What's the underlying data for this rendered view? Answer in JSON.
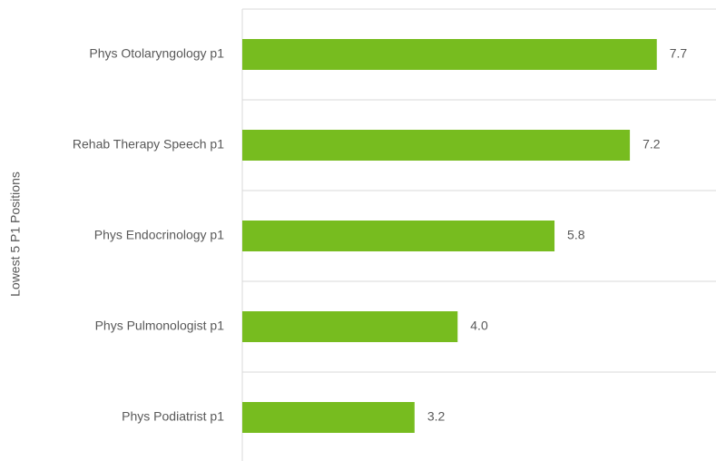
{
  "chart_data": {
    "type": "bar",
    "orientation": "horizontal",
    "y_axis_label": "Lowest 5 P1 Positions",
    "categories": [
      "Phys Otolaryngology p1",
      "Rehab Therapy Speech p1",
      "Phys Endocrinology p1",
      "Phys Pulmonologist p1",
      "Phys Podiatrist p1"
    ],
    "values": [
      7.7,
      7.2,
      5.8,
      4.0,
      3.2
    ],
    "value_labels": [
      "7.7",
      "7.2",
      "5.8",
      "4.0",
      "3.2"
    ],
    "color": "#77bc1f",
    "xlim": [
      0,
      8.8
    ]
  }
}
